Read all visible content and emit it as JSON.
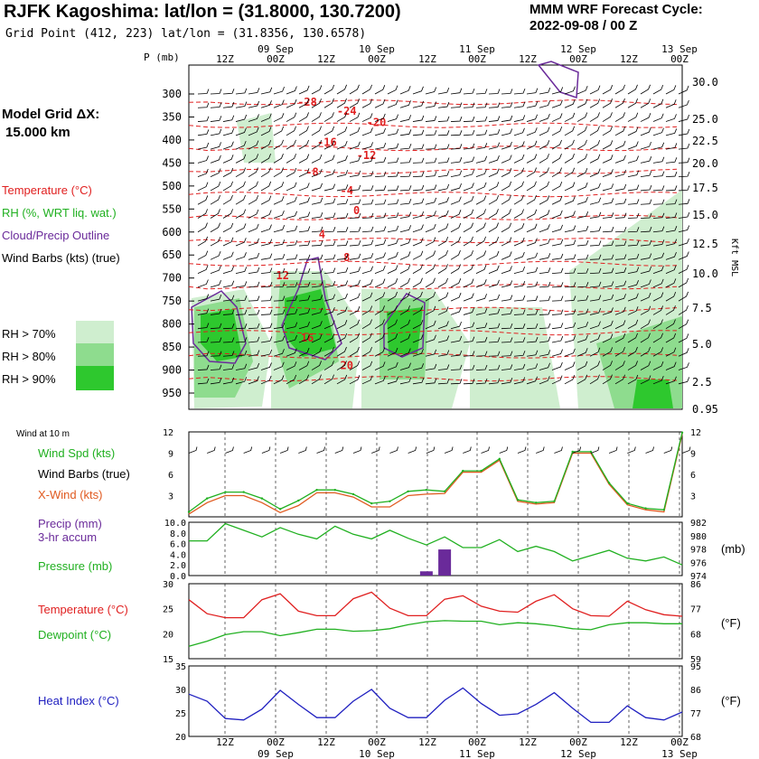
{
  "header": {
    "title": "RJFK Kagoshima:  lat/lon = (31.8000, 130.7200)",
    "subtitle": "Grid Point (412, 223) lat/lon = (31.8356, 130.6578)",
    "cycle_line1": "MMM WRF Forecast Cycle:",
    "cycle_line2": "2022-09-08 / 00  Z"
  },
  "legend": {
    "model_grid": "Model Grid ΔX:",
    "model_dx": "15.000 km",
    "temperature": "Temperature (°C)",
    "rh": "RH (%, WRT liq. wat.)",
    "cloud": "Cloud/Precip Outline",
    "barbs": "Wind Barbs (kts) (true)",
    "rh70": "RH > 70%",
    "rh80": "RH > 80%",
    "rh90": "RH > 90%",
    "wind10": "Wind at 10 m",
    "wind_spd": "Wind Spd (kts)",
    "wind_barbs": "Wind Barbs (true)",
    "xwind": "X-Wind (kts)",
    "precip1": "Precip (mm)",
    "precip2": "3-hr accum",
    "pressure": "Pressure (mb)",
    "temp2": "Temperature (°C)",
    "dewpoint": "Dewpoint (°C)",
    "heat": "Heat Index (°C)",
    "unit_mb": "(mb)",
    "unit_f1": "(°F)",
    "unit_f2": "(°F)",
    "kft": "Kft MSL"
  },
  "colors": {
    "temp": "#e02020",
    "green": "#20b020",
    "purple": "#6a2a9a",
    "orange": "#e05a20",
    "blue": "#2020c0",
    "rh70": "#cfeecf",
    "rh80": "#8edc8e",
    "rh90": "#2ec82e"
  },
  "chart_data": [
    {
      "type": "heatmap",
      "name": "cross-section",
      "time_labels": [
        "12Z",
        "00Z",
        "12Z",
        "00Z",
        "12Z",
        "00Z",
        "12Z",
        "00Z",
        "12Z",
        "00Z"
      ],
      "date_labels": [
        "09 Sep",
        "10 Sep",
        "11 Sep",
        "12 Sep",
        "13 Sep"
      ],
      "pressure_axis_label": "P (mb)",
      "pressure_levels": [
        300,
        350,
        400,
        450,
        500,
        550,
        600,
        650,
        700,
        750,
        800,
        850,
        900,
        950
      ],
      "pressure_labels": [
        "300",
        "350",
        "400",
        "450",
        "500",
        "550",
        "600",
        "650",
        "700",
        "750",
        "800",
        "850",
        "900",
        "950"
      ],
      "height_labels": [
        "30.0",
        "25.0",
        "22.5",
        "20.0",
        "17.5",
        "15.0",
        "12.5",
        "10.0",
        "7.5",
        "5.0",
        "2.5",
        "0.95"
      ],
      "height_values": [
        30.0,
        25.0,
        22.5,
        20.0,
        17.5,
        15.0,
        12.5,
        10.0,
        7.5,
        5.0,
        2.5,
        0.95
      ],
      "temp_labels": [
        {
          "t": 0.24,
          "p": 318,
          "text": "-28"
        },
        {
          "t": 0.32,
          "p": 337,
          "text": "-24"
        },
        {
          "t": 0.38,
          "p": 362,
          "text": "-20"
        },
        {
          "t": 0.28,
          "p": 405,
          "text": "-16"
        },
        {
          "t": 0.36,
          "p": 434,
          "text": "-12"
        },
        {
          "t": 0.25,
          "p": 470,
          "text": "-8"
        },
        {
          "t": 0.32,
          "p": 510,
          "text": "-4"
        },
        {
          "t": 0.34,
          "p": 553,
          "text": "0"
        },
        {
          "t": 0.27,
          "p": 605,
          "text": "4"
        },
        {
          "t": 0.32,
          "p": 655,
          "text": "8"
        },
        {
          "t": 0.19,
          "p": 695,
          "text": "12"
        },
        {
          "t": 0.24,
          "p": 830,
          "text": "16"
        },
        {
          "t": 0.32,
          "p": 890,
          "text": "20"
        }
      ]
    },
    {
      "type": "line",
      "name": "wind",
      "ylim": [
        0,
        12
      ],
      "yticks": [
        3,
        6,
        9,
        12
      ],
      "series": [
        {
          "name": "Wind Spd (kts)",
          "values": [
            0.7,
            2.6,
            3.5,
            3.5,
            2.6,
            1.1,
            2.3,
            3.8,
            3.8,
            3.2,
            1.9,
            2.2,
            3.6,
            3.8,
            3.6,
            6.5,
            6.5,
            8.2,
            2.4,
            2.0,
            2.2,
            9.2,
            9.2,
            4.8,
            1.9,
            1.2,
            1.0,
            11.9
          ]
        },
        {
          "name": "X-Wind (kts)",
          "values": [
            0.4,
            2.0,
            3.0,
            3.0,
            2.0,
            0.6,
            1.6,
            3.4,
            3.4,
            2.8,
            1.4,
            1.4,
            3.0,
            3.2,
            3.3,
            6.3,
            6.3,
            8.0,
            2.2,
            1.8,
            2.0,
            9.0,
            9.0,
            4.6,
            1.7,
            1.0,
            0.7,
            11.7
          ]
        }
      ]
    },
    {
      "type": "bar",
      "name": "precip",
      "ylim": [
        0,
        10
      ],
      "yticks": [
        0.0,
        2.0,
        4.0,
        6.0,
        8.0,
        10.0
      ],
      "ytick_labels": [
        "0.0",
        "2.0",
        "4.0",
        "6.0",
        "8.0",
        "10.0"
      ],
      "values": [
        0,
        0,
        0,
        0,
        0,
        0,
        0,
        0,
        0,
        0,
        0,
        0,
        0,
        0.8,
        4.9,
        0,
        0,
        0,
        0,
        0,
        0,
        0,
        0,
        0,
        0,
        0,
        0,
        0
      ]
    },
    {
      "type": "line",
      "name": "pressure",
      "ylim": [
        974,
        982
      ],
      "yticks": [
        974,
        976,
        978,
        980,
        982
      ],
      "values": [
        979.2,
        979.2,
        981.8,
        980.8,
        979.8,
        981.2,
        980.2,
        979.5,
        981.4,
        980.2,
        979.5,
        980.8,
        979.6,
        978.6,
        979.8,
        978.2,
        978.2,
        979.4,
        977.6,
        978.4,
        977.6,
        976.2,
        977.0,
        977.8,
        976.6,
        976.2,
        976.8,
        975.6
      ]
    },
    {
      "type": "line",
      "name": "temperature",
      "ylim": [
        15,
        30
      ],
      "yticks": [
        15,
        20,
        25,
        30
      ],
      "right_ticks": [
        59,
        68,
        77,
        86
      ],
      "series": [
        {
          "name": "Temperature (°C)",
          "values": [
            26.8,
            24.0,
            23.2,
            23.2,
            26.8,
            28.0,
            24.5,
            23.6,
            23.6,
            27.0,
            28.3,
            25.1,
            23.6,
            23.6,
            26.9,
            27.6,
            25.5,
            24.5,
            24.3,
            26.5,
            27.8,
            25.0,
            23.6,
            23.5,
            26.5,
            24.8,
            23.8,
            23.5
          ]
        },
        {
          "name": "Dewpoint (°C)",
          "values": [
            17.5,
            18.5,
            19.8,
            20.4,
            20.4,
            19.6,
            20.2,
            20.9,
            20.9,
            20.5,
            20.6,
            21.0,
            21.8,
            22.4,
            22.6,
            22.5,
            22.5,
            21.8,
            22.2,
            22.0,
            21.6,
            21.0,
            20.8,
            21.8,
            22.2,
            22.2,
            22.0,
            22.0
          ]
        }
      ]
    },
    {
      "type": "line",
      "name": "heat index",
      "ylim": [
        20,
        35
      ],
      "yticks": [
        20,
        25,
        30,
        35
      ],
      "right_ticks": [
        68,
        77,
        86,
        95
      ],
      "values": [
        29.0,
        27.5,
        23.8,
        23.5,
        25.8,
        29.8,
        26.8,
        24.0,
        24.0,
        27.5,
        30.0,
        26.0,
        24.0,
        24.0,
        27.7,
        30.3,
        27.0,
        24.5,
        24.8,
        26.8,
        29.3,
        26.0,
        23.0,
        23.0,
        26.5,
        24.0,
        23.5,
        25.2
      ]
    }
  ]
}
